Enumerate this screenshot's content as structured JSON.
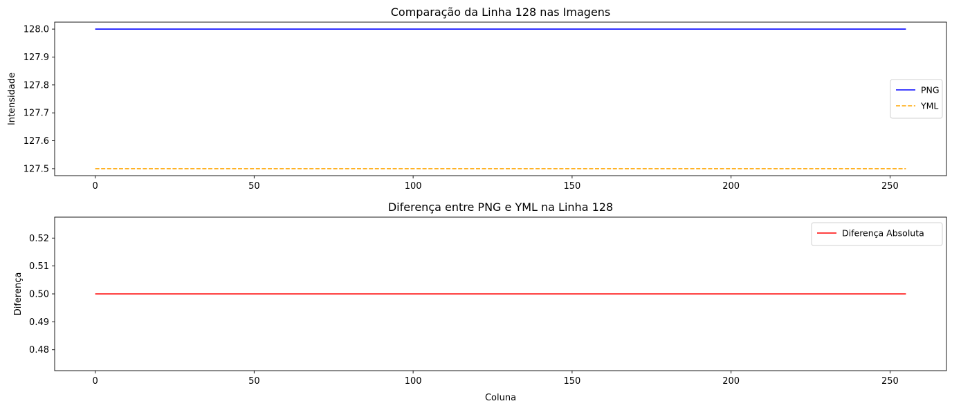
{
  "chart_data": [
    {
      "type": "line",
      "title": "Comparação da Linha 128 nas Imagens",
      "xlabel": "",
      "ylabel": "Intensidade",
      "xlim": [
        -12.75,
        267.75
      ],
      "ylim": [
        127.475,
        128.025
      ],
      "xticks": [
        0,
        50,
        100,
        150,
        200,
        250
      ],
      "yticks": [
        127.5,
        127.6,
        127.7,
        127.8,
        127.9,
        128.0
      ],
      "ytick_labels": [
        "127.5",
        "127.6",
        "127.7",
        "127.8",
        "127.9",
        "128.0"
      ],
      "legend_position": "center-right",
      "series": [
        {
          "name": "PNG",
          "x": [
            0,
            255
          ],
          "y": [
            128.0,
            128.0
          ],
          "color": "#0000ff",
          "dash": "solid"
        },
        {
          "name": "YML",
          "x": [
            0,
            255
          ],
          "y": [
            127.5,
            127.5
          ],
          "color": "#ffa500",
          "dash": "dashed"
        }
      ]
    },
    {
      "type": "line",
      "title": "Diferença entre PNG e YML na Linha 128",
      "xlabel": "Coluna",
      "ylabel": "Diferença",
      "xlim": [
        -12.75,
        267.75
      ],
      "ylim": [
        0.4725,
        0.5275
      ],
      "xticks": [
        0,
        50,
        100,
        150,
        200,
        250
      ],
      "yticks": [
        0.48,
        0.49,
        0.5,
        0.51,
        0.52
      ],
      "ytick_labels": [
        "0.48",
        "0.49",
        "0.50",
        "0.51",
        "0.52"
      ],
      "legend_position": "upper-right",
      "series": [
        {
          "name": "Diferença Absoluta",
          "x": [
            0,
            255
          ],
          "y": [
            0.5,
            0.5
          ],
          "color": "#ff0000",
          "dash": "solid"
        }
      ]
    }
  ]
}
